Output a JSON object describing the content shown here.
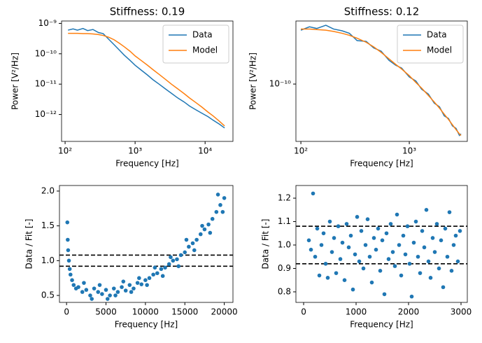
{
  "chart_data": [
    {
      "type": "line",
      "title": "Stiffness: 0.19",
      "xlabel": "Frequency [Hz]",
      "ylabel": "Power [V²/Hz]",
      "xscale": "log",
      "yscale": "log",
      "legend": "upper right",
      "xlim": [
        89,
        25000
      ],
      "ylim": [
        1.3e-13,
        1.2e-09
      ],
      "xticks": [
        {
          "value": 100,
          "label": "10²"
        },
        {
          "value": 1000,
          "label": "10³"
        },
        {
          "value": 10000,
          "label": "10⁴"
        }
      ],
      "yticks": [
        {
          "value": 1e-12,
          "label": "10⁻¹²"
        },
        {
          "value": 1e-11,
          "label": "10⁻¹¹"
        },
        {
          "value": 1e-10,
          "label": "10⁻¹⁰"
        },
        {
          "value": 1e-09,
          "label": "10⁻⁹"
        }
      ],
      "x": [
        110,
        130,
        150,
        180,
        210,
        250,
        300,
        350,
        420,
        500,
        600,
        700,
        850,
        1000,
        1200,
        1500,
        1800,
        2200,
        2700,
        3300,
        4000,
        5000,
        6000,
        7500,
        9000,
        11000,
        13000,
        16000,
        19000
      ],
      "series": [
        {
          "name": "Data",
          "color": "#1f77b4",
          "values": [
            6e-10,
            6.6e-10,
            6e-10,
            6.8e-10,
            5.8e-10,
            6.3e-10,
            5e-10,
            4.6e-10,
            3e-10,
            2e-10,
            1.3e-10,
            9e-11,
            6e-11,
            4.2e-11,
            3e-11,
            2e-11,
            1.4e-11,
            1e-11,
            7e-12,
            5e-12,
            3.6e-12,
            2.6e-12,
            1.9e-12,
            1.4e-12,
            1.1e-12,
            8.5e-13,
            6.5e-13,
            4.8e-13,
            3.6e-13
          ]
        },
        {
          "name": "Model",
          "color": "#ff7f0e",
          "values": [
            4.7e-10,
            4.7e-10,
            4.7e-10,
            4.6e-10,
            4.6e-10,
            4.5e-10,
            4.3e-10,
            4e-10,
            3.5e-10,
            2.9e-10,
            2.2e-10,
            1.7e-10,
            1.2e-10,
            8.5e-11,
            6.2e-11,
            4.2e-11,
            3e-11,
            2.1e-11,
            1.45e-11,
            1e-11,
            7.2e-12,
            4.9e-12,
            3.5e-12,
            2.4e-12,
            1.75e-12,
            1.2e-12,
            9e-13,
            6e-13,
            4.2e-13
          ]
        }
      ]
    },
    {
      "type": "line",
      "title": "Stiffness: 0.12",
      "xlabel": "Frequency [Hz]",
      "ylabel": "Power [V²/Hz]",
      "xscale": "log",
      "yscale": "log",
      "legend": "upper right",
      "xlim": [
        90,
        3430
      ],
      "ylim": [
        1.66e-11,
        7.2e-10
      ],
      "xticks": [
        {
          "value": 100,
          "label": "10²"
        },
        {
          "value": 1000,
          "label": "10³"
        }
      ],
      "yticks": [
        {
          "value": 1e-10,
          "label": "10⁻¹⁰"
        }
      ],
      "x": [
        100,
        120,
        140,
        170,
        200,
        240,
        280,
        330,
        400,
        470,
        550,
        650,
        750,
        850,
        1000,
        1150,
        1300,
        1500,
        1700,
        1900,
        2100,
        2300,
        2500,
        2700,
        2900,
        3000
      ],
      "series": [
        {
          "name": "Data",
          "color": "#1f77b4",
          "values": [
            5.4e-10,
            6e-10,
            5.7e-10,
            6.3e-10,
            5.6e-10,
            5.3e-10,
            4.9e-10,
            3.9e-10,
            3.8e-10,
            3.1e-10,
            2.8e-10,
            2.1e-10,
            1.8e-10,
            1.65e-10,
            1.25e-10,
            1.1e-10,
            8.5e-11,
            7.3e-11,
            5.5e-11,
            4.9e-11,
            3.7e-11,
            3.4e-11,
            2.7e-11,
            2.5e-11,
            2e-11,
            2.1e-11
          ]
        },
        {
          "name": "Model",
          "color": "#ff7f0e",
          "values": [
            5.6e-10,
            5.6e-10,
            5.5e-10,
            5.4e-10,
            5.2e-10,
            4.9e-10,
            4.6e-10,
            4.2e-10,
            3.7e-10,
            3.2e-10,
            2.7e-10,
            2.2e-10,
            1.85e-10,
            1.6e-10,
            1.3e-10,
            1.05e-10,
            8.8e-11,
            7e-11,
            5.7e-11,
            4.7e-11,
            3.9e-11,
            3.3e-11,
            2.8e-11,
            2.4e-11,
            2.1e-11,
            2e-11
          ]
        }
      ]
    },
    {
      "type": "scatter",
      "xlabel": "Frequency [Hz]",
      "ylabel": "Data / Fit [-]",
      "xlim": [
        -900,
        21100
      ],
      "ylim": [
        0.4,
        2.08
      ],
      "xticks": [
        0,
        5000,
        10000,
        15000,
        20000
      ],
      "yticks": [
        0.5,
        {
          "value": 1,
          "label": "1.0"
        },
        1.5,
        {
          "value": 2,
          "label": "2.0"
        }
      ],
      "hlines": [
        1.08,
        0.92
      ],
      "x": [
        100,
        150,
        200,
        300,
        400,
        500,
        700,
        900,
        1200,
        1500,
        2000,
        2500,
        3000,
        3500,
        4000,
        4500,
        5000,
        5500,
        6000,
        6500,
        7000,
        7500,
        8000,
        8500,
        9000,
        9500,
        10000,
        10500,
        11000,
        11500,
        12000,
        12500,
        13000,
        13500,
        14000,
        14500,
        15000,
        15500,
        16000,
        16500,
        17000,
        17500,
        18000,
        18500,
        19000,
        19500,
        20000,
        2200,
        3200,
        4200,
        5200,
        6200,
        7200,
        8200,
        9200,
        10200,
        11200,
        12200,
        13200,
        14200,
        15200,
        16200,
        17200,
        18200,
        19200,
        19800
      ],
      "series": [
        {
          "color": "#1f77b4",
          "values": [
            1.55,
            1.3,
            1.15,
            1.0,
            0.88,
            0.8,
            0.72,
            0.65,
            0.6,
            0.62,
            0.55,
            0.58,
            0.5,
            0.6,
            0.55,
            0.52,
            0.58,
            0.5,
            0.6,
            0.55,
            0.62,
            0.57,
            0.65,
            0.6,
            0.68,
            0.66,
            0.72,
            0.75,
            0.8,
            0.82,
            0.88,
            0.9,
            0.95,
            1.0,
            1.02,
            1.08,
            1.12,
            1.2,
            1.25,
            1.3,
            1.38,
            1.45,
            1.52,
            1.6,
            1.7,
            1.8,
            1.9,
            0.68,
            0.45,
            0.65,
            0.45,
            0.5,
            0.7,
            0.55,
            0.75,
            0.65,
            0.9,
            0.78,
            1.05,
            0.92,
            1.3,
            1.15,
            1.5,
            1.4,
            1.95,
            1.7
          ]
        }
      ]
    },
    {
      "type": "scatter",
      "xlabel": "Frequency [Hz]",
      "ylabel": "Data / Fit [-]",
      "xlim": [
        -147,
        3120
      ],
      "ylim": [
        0.755,
        1.254
      ],
      "xticks": [
        0,
        1000,
        2000,
        3000
      ],
      "yticks": [
        0.8,
        0.9,
        {
          "value": 1,
          "label": "1.0"
        },
        1.1,
        1.2
      ],
      "hlines": [
        1.08,
        0.92
      ],
      "x": [
        100,
        140,
        180,
        220,
        260,
        300,
        340,
        380,
        420,
        460,
        500,
        540,
        580,
        620,
        660,
        700,
        740,
        780,
        820,
        860,
        900,
        940,
        980,
        1020,
        1060,
        1100,
        1140,
        1180,
        1220,
        1260,
        1300,
        1340,
        1380,
        1420,
        1460,
        1500,
        1540,
        1580,
        1620,
        1660,
        1700,
        1740,
        1780,
        1820,
        1860,
        1900,
        1940,
        1980,
        2020,
        2060,
        2100,
        2140,
        2180,
        2220,
        2260,
        2300,
        2340,
        2380,
        2420,
        2460,
        2500,
        2540,
        2580,
        2620,
        2660,
        2700,
        2740,
        2780,
        2820,
        2860,
        2900,
        2940,
        2980
      ],
      "series": [
        {
          "color": "#1f77b4",
          "values": [
            1.02,
            0.98,
            1.22,
            0.95,
            1.07,
            0.87,
            1.0,
            1.05,
            0.92,
            0.86,
            1.1,
            0.97,
            1.03,
            0.88,
            1.08,
            0.94,
            1.01,
            0.85,
            1.09,
            0.99,
            1.04,
            0.81,
            0.96,
            1.12,
            0.93,
            1.06,
            0.9,
            1.0,
            1.11,
            0.95,
            0.84,
            1.03,
            0.98,
            1.07,
            0.89,
            1.02,
            0.79,
            1.05,
            0.94,
            1.09,
            0.97,
            0.91,
            1.13,
            1.0,
            0.87,
            1.04,
            0.96,
            1.08,
            0.92,
            0.78,
            1.01,
            1.1,
            0.95,
            0.88,
            1.06,
            0.99,
            1.15,
            0.93,
            0.86,
            1.03,
            0.97,
            1.09,
            0.9,
            1.02,
            0.82,
            1.07,
            0.95,
            1.14,
            0.89,
            1.0,
            1.04,
            0.93,
            1.06
          ]
        }
      ]
    }
  ]
}
